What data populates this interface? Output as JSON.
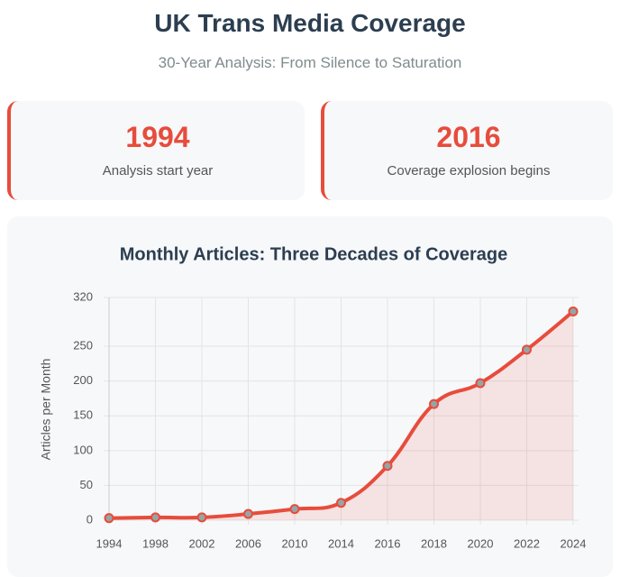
{
  "header": {
    "title": "UK Trans Media Coverage",
    "subtitle": "30-Year Analysis: From Silence to Saturation"
  },
  "cards": [
    {
      "value": "1994",
      "label": "Analysis start year"
    },
    {
      "value": "2016",
      "label": "Coverage explosion begins"
    }
  ],
  "chart_data": {
    "type": "line",
    "title": "Monthly Articles: Three Decades of Coverage",
    "y_label": "Articles per Month",
    "categories": [
      "1994",
      "1998",
      "2002",
      "2006",
      "2010",
      "2014",
      "2016",
      "2018",
      "2020",
      "2022",
      "2024"
    ],
    "series": [
      {
        "name": "Monthly Articles",
        "color": "#e74c3c",
        "values": [
          3,
          4,
          4,
          9,
          16,
          25,
          78,
          167,
          197,
          245,
          300
        ]
      }
    ],
    "ylim": [
      0,
      320
    ],
    "yticks": [
      0,
      50,
      100,
      150,
      200,
      250,
      320
    ],
    "grid": true
  }
}
